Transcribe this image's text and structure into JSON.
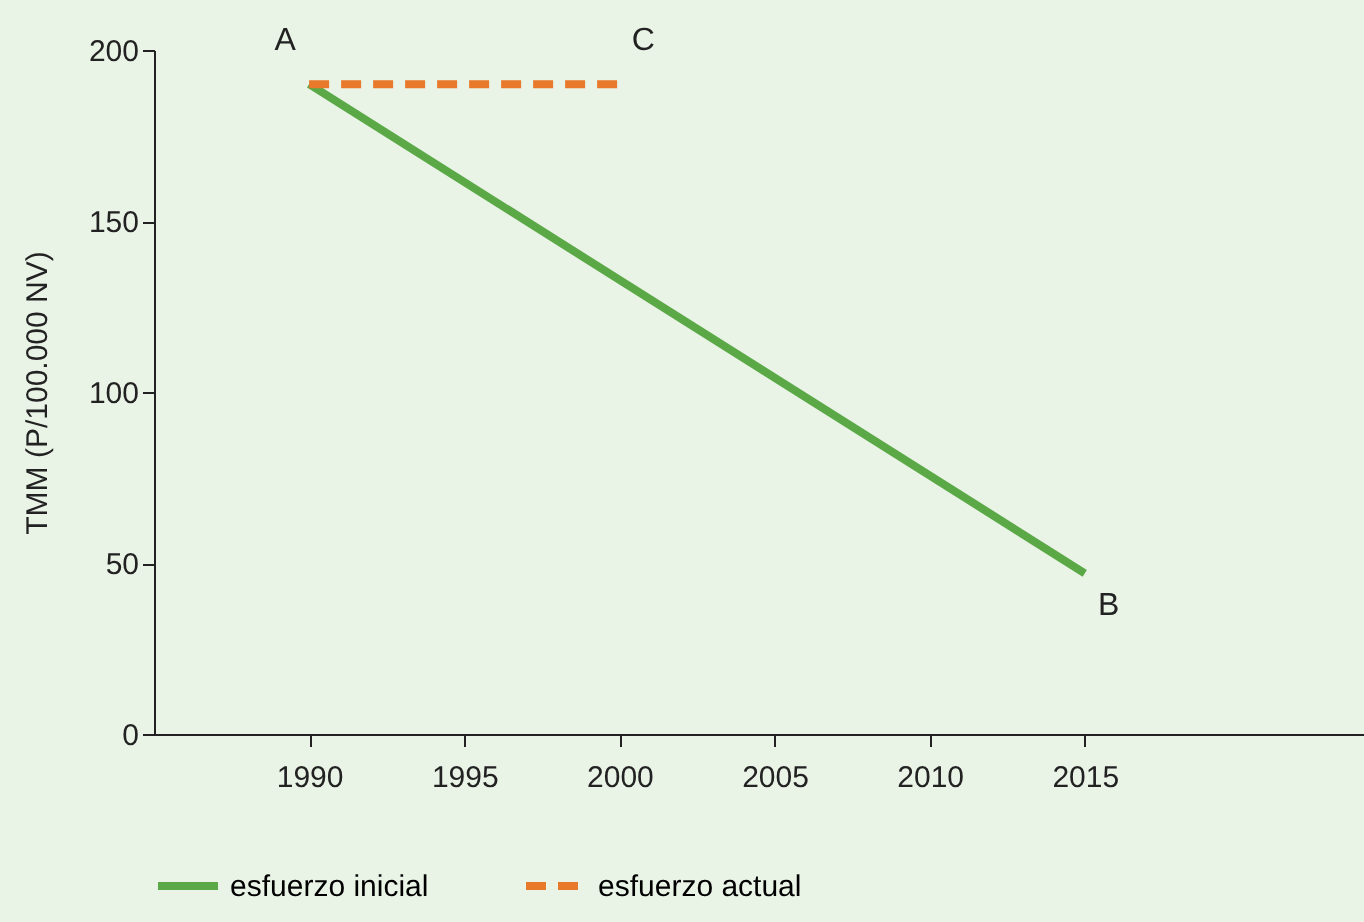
{
  "chart_data": {
    "type": "line",
    "ylabel": "TMM (P/100.000 NV)",
    "x": [
      1990,
      2015
    ],
    "xlim": [
      1985,
      2024
    ],
    "xticks": [
      1990,
      1995,
      2000,
      2005,
      2010,
      2015
    ],
    "ylim": [
      0,
      200
    ],
    "yticks": [
      0,
      50,
      100,
      150,
      200
    ],
    "grid": false,
    "legend": "bottom",
    "marker": "none",
    "series": [
      {
        "name": "esfuerzo inicial",
        "color": "#5aa846",
        "values": [
          190,
          47
        ],
        "line_style": "solid"
      },
      {
        "name": "esfuerzo actual",
        "color": "#e8792a",
        "x": [
          1990,
          2000
        ],
        "values": [
          190,
          190
        ],
        "line_style": "dashed"
      }
    ],
    "annotations": [
      {
        "text": "A",
        "x": 1990,
        "y": 190
      },
      {
        "text": "C",
        "x": 2000,
        "y": 190
      },
      {
        "text": "B",
        "x": 2015,
        "y": 47
      }
    ]
  }
}
